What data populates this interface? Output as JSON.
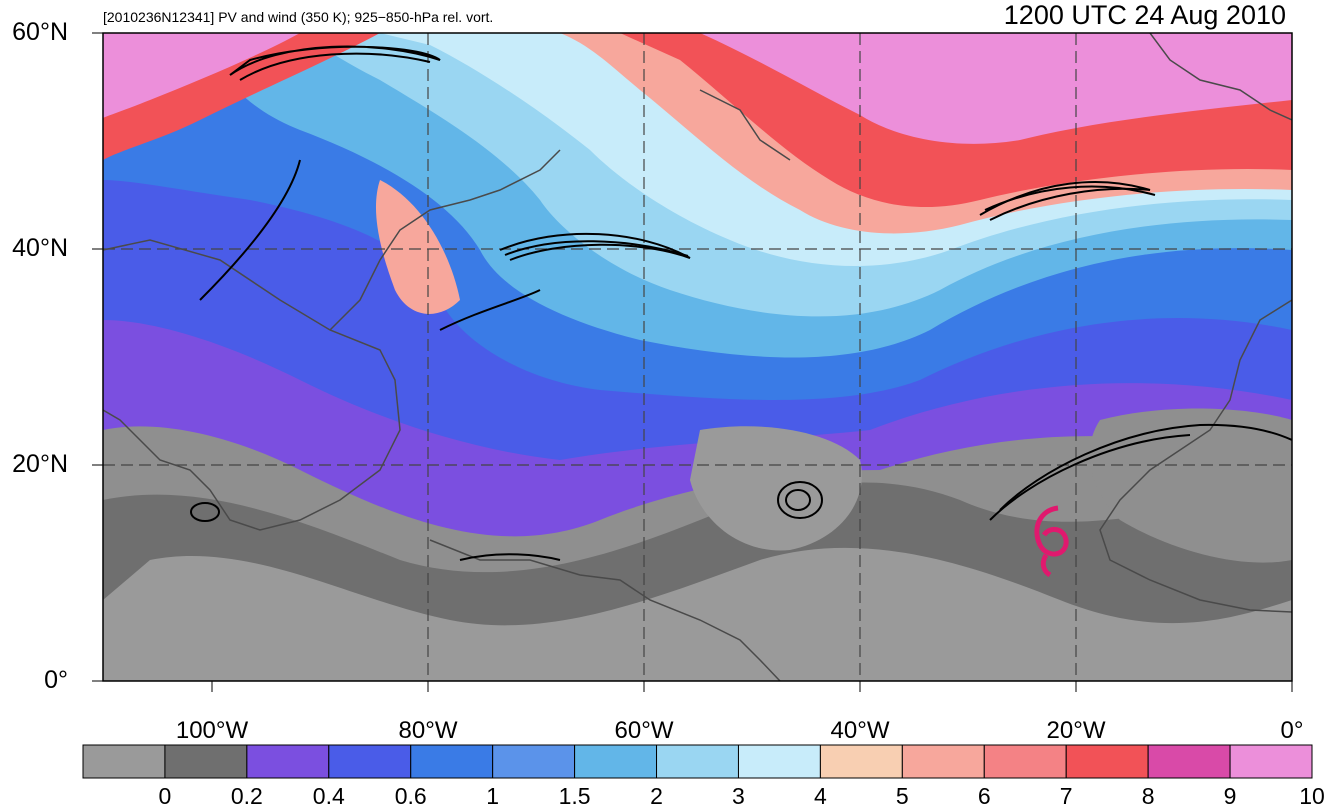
{
  "title": {
    "left": "[2010236N12341] PV and wind (350 K); 925−850-hPa rel. vort.",
    "right": "1200 UTC 24 Aug 2010"
  },
  "map": {
    "projection": "cylindrical equidistant",
    "lon_range": [
      -110,
      0
    ],
    "lat_range": [
      0,
      60
    ],
    "lat_labels": [
      "60°N",
      "40°N",
      "20°N",
      "0°"
    ],
    "lon_labels": [
      "100°W",
      "80°W",
      "60°W",
      "40°W",
      "20°W",
      "0°"
    ],
    "storm_symbol": "tropical-cyclone-icon",
    "storm_symbol_color": "#e0196e"
  },
  "colorbar": {
    "labels": [
      "0",
      "0.2",
      "0.4",
      "0.6",
      "1",
      "1.5",
      "2",
      "3",
      "4",
      "5",
      "6",
      "7",
      "8",
      "9",
      "10"
    ],
    "colors": [
      "#9a9a9a",
      "#6f6f6f",
      "#7b4fe0",
      "#4a5ce8",
      "#3a7be6",
      "#5b93ea",
      "#62b6e8",
      "#9ad6f2",
      "#c8ecfa",
      "#f8cfb2",
      "#f7a79c",
      "#f48285",
      "#f25257",
      "#d94aa8",
      "#ec8fda"
    ]
  }
}
